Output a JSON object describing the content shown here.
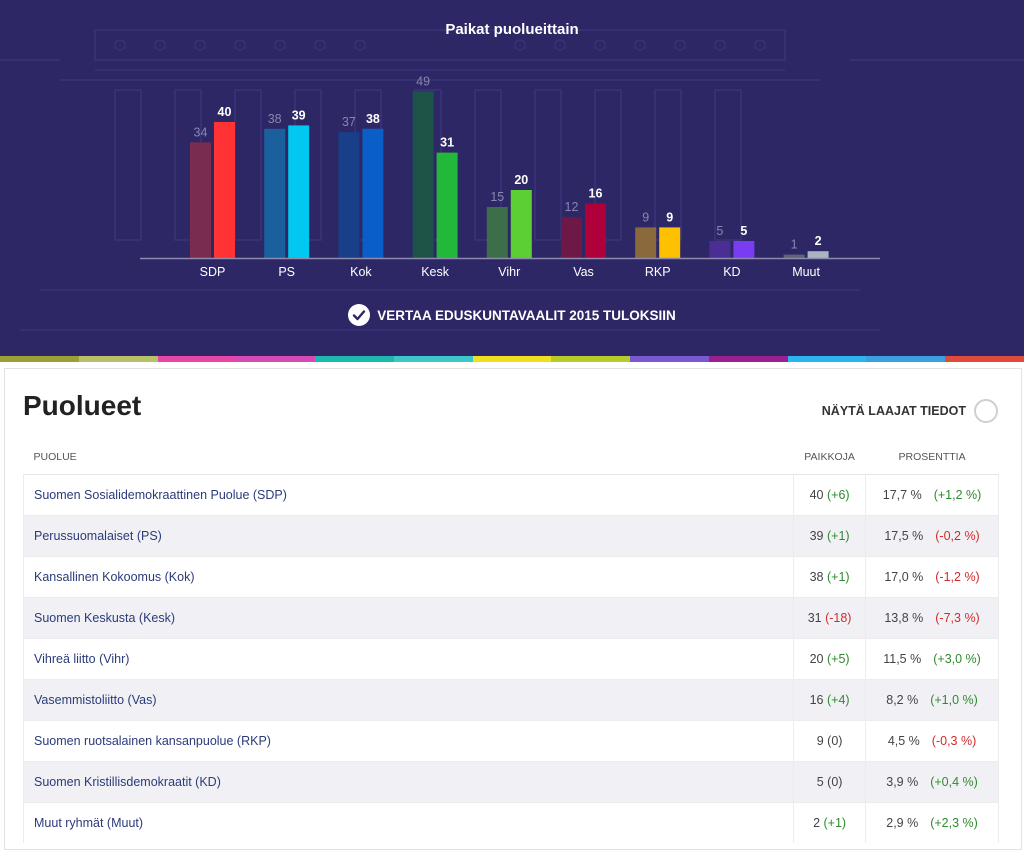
{
  "chart_title": "Paikat puolueittain",
  "compare_label": "VERTAA EDUSKUNTAVAALIT 2015 TULOKSIIN",
  "chart_data": {
    "type": "bar",
    "title": "Paikat puolueittain",
    "categories": [
      "SDP",
      "PS",
      "Kok",
      "Kesk",
      "Vihr",
      "Vas",
      "RKP",
      "KD",
      "Muut"
    ],
    "series": [
      {
        "values": [
          34,
          38,
          37,
          49,
          15,
          12,
          9,
          5,
          1
        ]
      },
      {
        "values": [
          40,
          39,
          38,
          31,
          20,
          16,
          9,
          5,
          2
        ]
      }
    ],
    "ylim": [
      0,
      49
    ],
    "grid": false,
    "colors_2019": [
      "#ff3333",
      "#00c8f0",
      "#0a5ec8",
      "#22b83a",
      "#5cd032",
      "#b0003a",
      "#ffc000",
      "#7a3cf0",
      "#a9b4c2"
    ],
    "colors_2015": [
      "#7a2c4e",
      "#1a609c",
      "#193f88",
      "#1e5448",
      "#3c6e4a",
      "#6e1848",
      "#8a6a3c",
      "#4a2e94",
      "#5e6478"
    ]
  },
  "section": {
    "title": "Puolueet",
    "toggle_label": "NÄYTÄ LAAJAT TIEDOT"
  },
  "table": {
    "headers": {
      "party": "PUOLUE",
      "seats": "PAIKKOJA",
      "percent": "PROSENTTIA"
    },
    "rows": [
      {
        "name": "Suomen Sosialidemokraattinen Puolue (SDP)",
        "seats": "40",
        "seats_change": "(+6)",
        "seats_dir": "pos",
        "percent": "17,7 %",
        "percent_change": "(+1,2 %)",
        "percent_dir": "pos"
      },
      {
        "name": "Perussuomalaiset (PS)",
        "seats": "39",
        "seats_change": "(+1)",
        "seats_dir": "pos",
        "percent": "17,5 %",
        "percent_change": "(-0,2 %)",
        "percent_dir": "neg"
      },
      {
        "name": "Kansallinen Kokoomus (Kok)",
        "seats": "38",
        "seats_change": "(+1)",
        "seats_dir": "pos",
        "percent": "17,0 %",
        "percent_change": "(-1,2 %)",
        "percent_dir": "neg"
      },
      {
        "name": "Suomen Keskusta (Kesk)",
        "seats": "31",
        "seats_change": "(-18)",
        "seats_dir": "neg",
        "percent": "13,8 %",
        "percent_change": "(-7,3 %)",
        "percent_dir": "neg"
      },
      {
        "name": "Vihreä liitto (Vihr)",
        "seats": "20",
        "seats_change": "(+5)",
        "seats_dir": "pos",
        "percent": "11,5 %",
        "percent_change": "(+3,0 %)",
        "percent_dir": "pos"
      },
      {
        "name": "Vasemmistoliitto (Vas)",
        "seats": "16",
        "seats_change": "(+4)",
        "seats_dir": "pos",
        "percent": "8,2 %",
        "percent_change": "(+1,0 %)",
        "percent_dir": "pos"
      },
      {
        "name": "Suomen ruotsalainen kansanpuolue (RKP)",
        "seats": "9",
        "seats_change": "(0)",
        "seats_dir": "neu",
        "percent": "4,5 %",
        "percent_change": "(-0,3 %)",
        "percent_dir": "neg"
      },
      {
        "name": "Suomen Kristillisdemokraatit (KD)",
        "seats": "5",
        "seats_change": "(0)",
        "seats_dir": "neu",
        "percent": "3,9 %",
        "percent_change": "(+0,4 %)",
        "percent_dir": "pos"
      },
      {
        "name": "Muut ryhmät (Muut)",
        "seats": "2",
        "seats_change": "(+1)",
        "seats_dir": "pos",
        "percent": "2,9 %",
        "percent_change": "(+2,3 %)",
        "percent_dir": "pos"
      }
    ]
  },
  "stripe_colors": [
    "#9aa035",
    "#b8c06a",
    "#e845a8",
    "#d64ab6",
    "#1fb8b0",
    "#3ec6c8",
    "#f0e020",
    "#b6cc2a",
    "#7a58d0",
    "#9a2090",
    "#2ab4f0",
    "#3aa0e0",
    "#e04a3a"
  ],
  "colors": {
    "hero_bg": "#2d2766",
    "link": "#2b3b7a",
    "positive": "#2e8b2e",
    "negative": "#d22b2b"
  }
}
